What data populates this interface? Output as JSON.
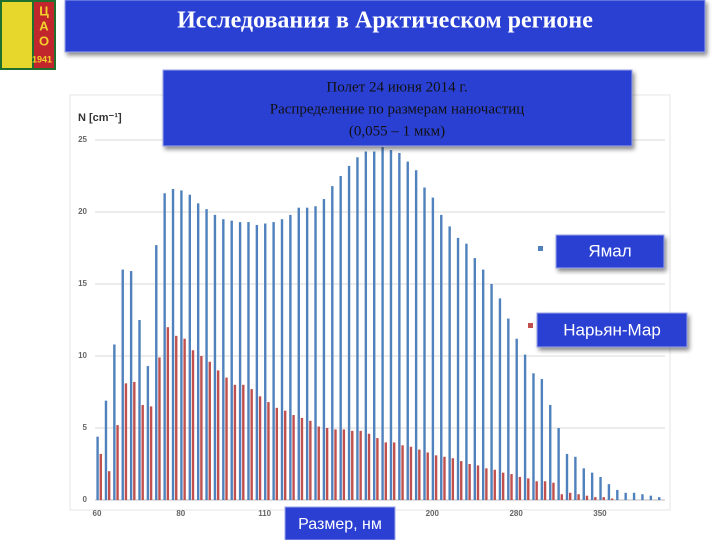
{
  "header": {
    "title": "Исследования в Арктическом регионе"
  },
  "logo": {
    "letters": [
      "Ц",
      "А",
      "О"
    ],
    "year": "1941"
  },
  "chart_data": {
    "type": "bar",
    "title_lines": [
      "Полет 24 июня 2014 г.",
      "Распределение по размерам  наночастиц",
      "(0,055 – 1 мкм)"
    ],
    "xlabel": "Размер, нм",
    "ylabel": "N [cm⁻¹]",
    "categories": [
      "60",
      null,
      null,
      null,
      null,
      null,
      null,
      null,
      null,
      null,
      "80",
      null,
      null,
      null,
      null,
      null,
      null,
      null,
      null,
      null,
      "110",
      null,
      null,
      null,
      null,
      null,
      null,
      null,
      null,
      null,
      null,
      null,
      null,
      null,
      null,
      null,
      null,
      null,
      null,
      null,
      "200",
      null,
      null,
      null,
      null,
      null,
      null,
      null,
      null,
      null,
      "280",
      null,
      null,
      null,
      null,
      null,
      null,
      null,
      null,
      null,
      "350",
      null,
      null,
      null,
      null,
      null,
      null,
      null
    ],
    "series": [
      {
        "name": "Ямал",
        "color": "#4f81bd",
        "values": [
          4.4,
          6.9,
          10.8,
          16.0,
          15.9,
          12.5,
          9.3,
          17.7,
          21.3,
          21.6,
          21.5,
          21.2,
          20.6,
          20.2,
          19.8,
          19.5,
          19.4,
          19.3,
          19.3,
          19.1,
          19.2,
          19.3,
          19.5,
          19.8,
          20.3,
          20.3,
          20.4,
          20.9,
          21.8,
          22.5,
          23.2,
          23.8,
          24.2,
          24.2,
          24.5,
          24.3,
          24.1,
          23.5,
          22.9,
          21.7,
          21.0,
          19.8,
          19.0,
          18.2,
          17.8,
          16.8,
          16.0,
          15.0,
          14.0,
          12.6,
          11.2,
          10.1,
          8.8,
          8.4,
          6.6,
          5.0,
          3.2,
          3.0,
          2.2,
          1.9,
          1.6,
          1.1,
          0.7,
          0.5,
          0.5,
          0.4,
          0.3,
          0.2
        ]
      },
      {
        "name": "Нарьян-Мар",
        "color": "#c0504d",
        "values": [
          3.2,
          2.0,
          5.2,
          8.1,
          8.2,
          6.6,
          6.5,
          9.9,
          12.0,
          11.4,
          11.2,
          10.4,
          10.0,
          9.6,
          9.0,
          8.5,
          8.0,
          8.0,
          7.7,
          7.2,
          6.8,
          6.4,
          6.2,
          5.9,
          5.7,
          5.5,
          5.1,
          5.0,
          4.9,
          4.9,
          4.8,
          4.8,
          4.6,
          4.3,
          4.0,
          4.0,
          3.8,
          3.7,
          3.5,
          3.3,
          3.1,
          3.0,
          2.9,
          2.7,
          2.5,
          2.4,
          2.2,
          2.1,
          1.9,
          1.8,
          1.6,
          1.5,
          1.3,
          1.3,
          1.2,
          0.4,
          0.5,
          0.4,
          0.3,
          0.2,
          0.2,
          0.1,
          0,
          0,
          0,
          0,
          0,
          0
        ]
      }
    ],
    "ylim": [
      0,
      25
    ],
    "yticks": [
      0,
      5,
      10,
      15,
      20,
      25
    ],
    "grid": true
  }
}
